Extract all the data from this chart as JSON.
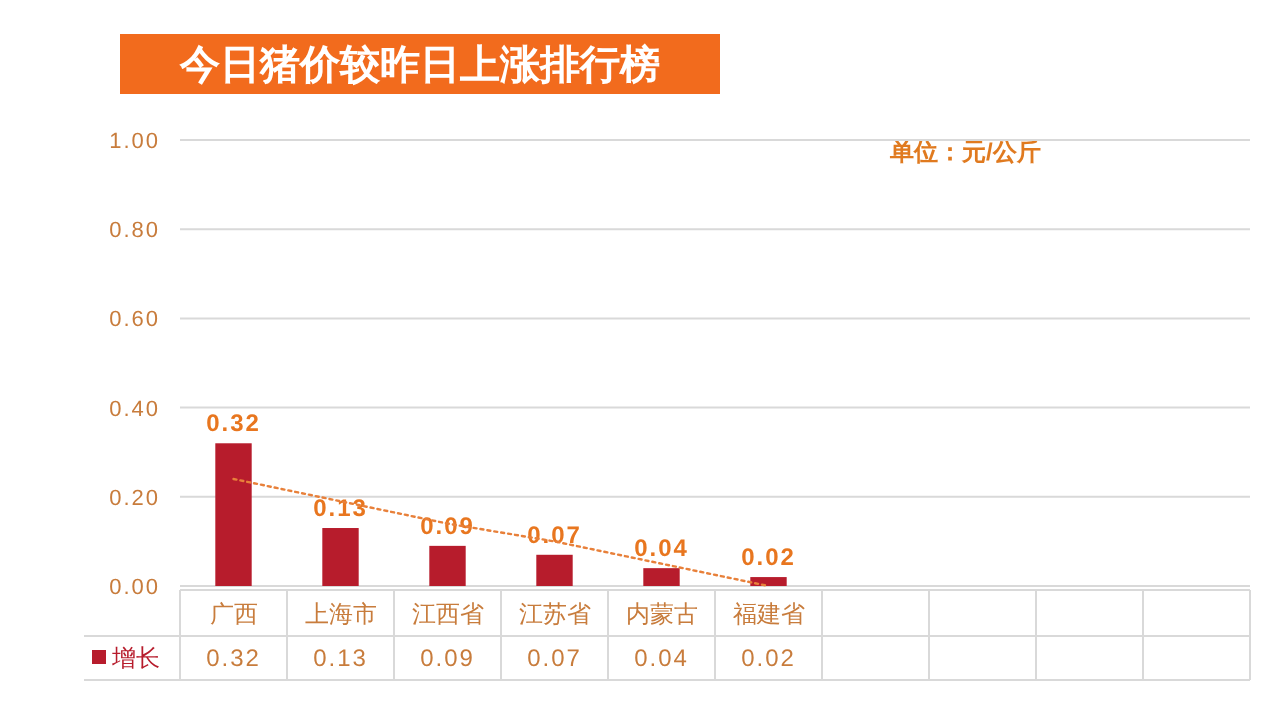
{
  "chart_data": {
    "type": "bar",
    "title": "今日猪价较昨日上涨排行榜",
    "annotations": [
      "单位：元/公斤"
    ],
    "categories": [
      "广西",
      "上海市",
      "江西省",
      "江苏省",
      "内蒙古",
      "福建省",
      null,
      null,
      null,
      null
    ],
    "series": [
      {
        "name": "增长",
        "color": "#b71c2c",
        "values": [
          0.32,
          0.13,
          0.09,
          0.07,
          0.04,
          0.02,
          null,
          null,
          null,
          null
        ],
        "value_labels": [
          "0.32",
          "0.13",
          "0.09",
          "0.07",
          "0.04",
          "0.02",
          null,
          null,
          null,
          null
        ]
      },
      {
        "type": "line",
        "color": "#e8803a",
        "line_style": "dotted",
        "values": [
          0.24,
          0.19,
          0.14,
          0.1,
          0.05,
          0.0,
          null,
          null,
          null,
          null
        ]
      }
    ],
    "ylim": [
      0,
      1
    ],
    "yticks": [
      {
        "value": 0,
        "label": "0.00"
      },
      {
        "value": 0.2,
        "label": "0.20"
      },
      {
        "value": 0.4,
        "label": "0.40"
      },
      {
        "value": 0.6,
        "label": "0.60"
      },
      {
        "value": 0.8,
        "label": "0.80"
      },
      {
        "value": 1,
        "label": "1.00"
      }
    ],
    "grid": "y"
  }
}
